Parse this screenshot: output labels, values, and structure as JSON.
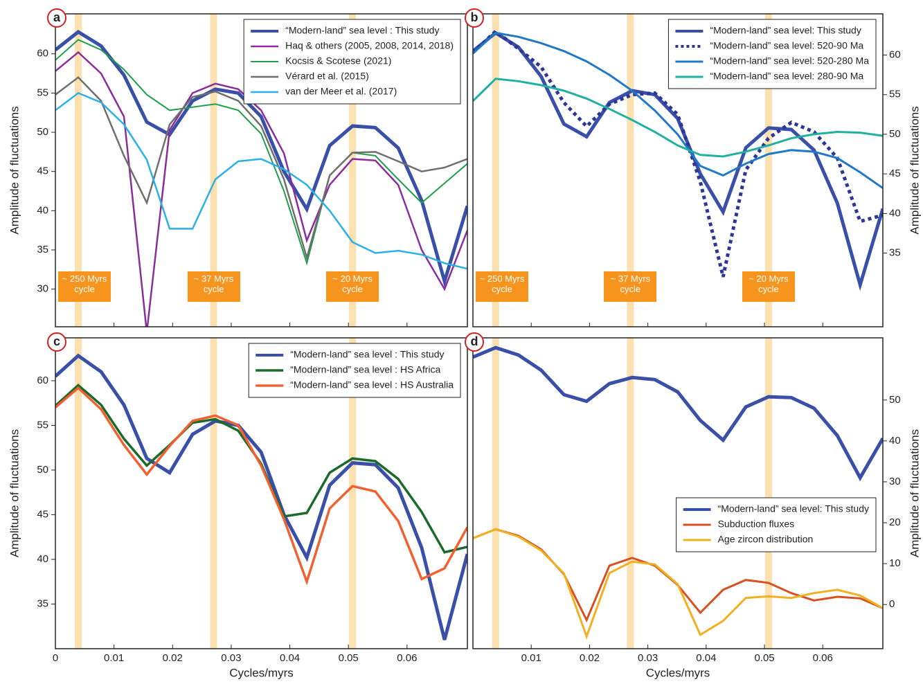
{
  "chart_data": [
    {
      "type": "line",
      "panel_label": "a",
      "ylabel": "Amplitude of fluctuations",
      "yaxis_side": "left",
      "xtick_labels": false,
      "legend": "upper right",
      "xlim": [
        0,
        0.0703
      ],
      "ylim": [
        25.2,
        65.1
      ],
      "xticks": [
        0,
        0.01,
        0.02,
        0.03,
        0.04,
        0.05,
        0.06
      ],
      "yticks": [
        30,
        35,
        40,
        45,
        50,
        55,
        60
      ],
      "highlight_x": [
        0.0039,
        0.027,
        0.0507
      ],
      "annotations": [
        {
          "x": 0.0039,
          "label": "~ 250 Myrs cycle"
        },
        {
          "x": 0.027,
          "label": "~ 37 Myrs cycle"
        },
        {
          "x": 0.0507,
          "label": "~ 20 Myrs cycle"
        }
      ],
      "x": [
        0,
        0.0039,
        0.0078,
        0.0117,
        0.0156,
        0.0195,
        0.0234,
        0.0273,
        0.0312,
        0.0351,
        0.039,
        0.0429,
        0.0468,
        0.0507,
        0.0546,
        0.0585,
        0.0625,
        0.0664,
        0.0703
      ],
      "series": [
        {
          "name": "“Modern-land” sea level : This study",
          "color": "#3a4fa8",
          "linewidth": 5,
          "values": [
            60.5,
            62.8,
            61,
            57.3,
            51.3,
            49.7,
            54,
            55.5,
            55,
            52,
            45,
            40.2,
            48.3,
            50.8,
            50.6,
            48,
            41.3,
            31,
            40.6
          ]
        },
        {
          "name": "Haq & others (2005, 2008, 2014, 2018)",
          "color": "#8a2c9e",
          "linewidth": 2.5,
          "values": [
            57.8,
            60.2,
            57.5,
            52,
            24.5,
            50.3,
            55,
            56.2,
            55.5,
            52.8,
            47.3,
            36.2,
            43.3,
            46.6,
            46.4,
            43.3,
            35,
            30,
            37.5
          ]
        },
        {
          "name": "Kocsis & Scotese (2021)",
          "color": "#1e9e4a",
          "linewidth": 2,
          "values": [
            59.2,
            61.8,
            60.5,
            58,
            54.8,
            52.8,
            53.2,
            53.6,
            52.8,
            49.8,
            42.5,
            33.3,
            44.5,
            47.4,
            47,
            44,
            41,
            43.5,
            46
          ]
        },
        {
          "name": "Vérard et al. (2015)",
          "color": "#6e6e6e",
          "linewidth": 2.5,
          "values": [
            54.8,
            57,
            54,
            47,
            41,
            51,
            54.5,
            55.2,
            54,
            50.8,
            44,
            34,
            44.5,
            47.4,
            47.5,
            46.3,
            45,
            45.5,
            46.6
          ]
        },
        {
          "name": "van der Meer et al. (2017)",
          "color": "#2ab0e8",
          "linewidth": 2.5,
          "values": [
            52.8,
            55,
            53.8,
            51,
            46.5,
            37.7,
            37.7,
            44,
            46.3,
            46.6,
            45.3,
            43.3,
            40,
            36,
            34.6,
            34.9,
            34.4,
            33.3,
            32.6
          ]
        }
      ]
    },
    {
      "type": "line",
      "panel_label": "b",
      "ylabel": "Amplitude of fluctuations",
      "yaxis_side": "right",
      "xtick_labels": false,
      "legend": "upper right",
      "xlim": [
        0,
        0.0703
      ],
      "ylim": [
        25.7,
        65.2
      ],
      "xticks": [
        0,
        0.01,
        0.02,
        0.03,
        0.04,
        0.05,
        0.06
      ],
      "yticks": [
        35,
        40,
        45,
        50,
        55,
        60
      ],
      "highlight_x": [
        0.0039,
        0.027,
        0.0507
      ],
      "annotations": [
        {
          "x": 0.0039,
          "label": "~ 250 Myrs cycle"
        },
        {
          "x": 0.027,
          "label": "~ 37 Myrs cycle"
        },
        {
          "x": 0.0507,
          "label": "~ 20 Myrs cycle"
        }
      ],
      "x": [
        0,
        0.0039,
        0.0078,
        0.0117,
        0.0156,
        0.0195,
        0.0234,
        0.0273,
        0.0312,
        0.0351,
        0.039,
        0.0429,
        0.0468,
        0.0507,
        0.0546,
        0.0585,
        0.0625,
        0.0664,
        0.0703
      ],
      "series": [
        {
          "name": "“Modern-land” sea level: This study",
          "color": "#3a4fa8",
          "linewidth": 5,
          "values": [
            60.5,
            62.8,
            61,
            57.3,
            51.3,
            49.7,
            54,
            55.5,
            55,
            52,
            45,
            40.2,
            48.3,
            50.8,
            50.6,
            48,
            41.3,
            31,
            40.6
          ]
        },
        {
          "name": "“Modern-land” sea level: 520-90 Ma",
          "color": "#2c3598",
          "linewidth": 5,
          "dashed": true,
          "values": [
            60.3,
            63,
            60.8,
            58.5,
            54,
            51,
            53.8,
            55,
            55.2,
            52.5,
            44,
            32,
            45.5,
            49.5,
            51.5,
            50.3,
            47,
            39,
            39.8
          ]
        },
        {
          "name": "“Modern-land” sea level: 520-280 Ma",
          "color": "#1f78c8",
          "linewidth": 3,
          "values": [
            60.2,
            62.8,
            62.3,
            61.5,
            60.5,
            59.2,
            57.5,
            55.5,
            53,
            50,
            46,
            44.8,
            46.3,
            47.5,
            48,
            47.8,
            47,
            45.2,
            43.2
          ]
        },
        {
          "name": "“Modern-land” sea level: 280-90 Ma",
          "color": "#1fb0a0",
          "linewidth": 3,
          "values": [
            54.2,
            57,
            56.7,
            56.2,
            55.5,
            54.5,
            53.2,
            51.8,
            50.3,
            48.6,
            47.4,
            47.2,
            47.8,
            48.6,
            49.5,
            50,
            50.3,
            50.2,
            49.8
          ]
        }
      ]
    },
    {
      "type": "line",
      "panel_label": "c",
      "ylabel": "Amplitude of fluctuations",
      "xlabel": "Cycles/myrs",
      "yaxis_side": "left",
      "xtick_labels": true,
      "legend": "upper right",
      "xlim": [
        0,
        0.0703
      ],
      "ylim": [
        30,
        64.8
      ],
      "xticks": [
        0,
        0.01,
        0.02,
        0.03,
        0.04,
        0.05,
        0.06
      ],
      "yticks": [
        35,
        40,
        45,
        50,
        55,
        60
      ],
      "highlight_x": [
        0.0039,
        0.027,
        0.0507
      ],
      "x": [
        0,
        0.0039,
        0.0078,
        0.0117,
        0.0156,
        0.0195,
        0.0234,
        0.0273,
        0.0312,
        0.0351,
        0.039,
        0.0429,
        0.0468,
        0.0507,
        0.0546,
        0.0585,
        0.0625,
        0.0664,
        0.0703
      ],
      "series": [
        {
          "name": "“Modern-land” sea level : This study",
          "color": "#3a4fa8",
          "linewidth": 5,
          "values": [
            60.5,
            62.8,
            61,
            57.3,
            51.3,
            49.7,
            54,
            55.5,
            55,
            52,
            45,
            40.2,
            48.3,
            50.8,
            50.6,
            48,
            41.3,
            31,
            40.6
          ]
        },
        {
          "name": "“Modern-land” sea level : HS Africa",
          "color": "#1a6a2a",
          "linewidth": 3.5,
          "values": [
            57.2,
            59.5,
            57.3,
            53.5,
            50.5,
            52.8,
            55.3,
            55.7,
            54.4,
            50.7,
            44.8,
            45.2,
            49.7,
            51.3,
            51,
            49,
            45.3,
            40.8,
            41.4
          ]
        },
        {
          "name": "“Modern-land” sea level : HS Australia",
          "color": "#f06030",
          "linewidth": 3.5,
          "values": [
            57,
            59.2,
            56.8,
            52.8,
            49.5,
            52.7,
            55.5,
            56.1,
            55,
            50.5,
            44.5,
            37.5,
            45.7,
            48.2,
            47.6,
            44.3,
            37.8,
            39,
            43.6
          ]
        }
      ]
    },
    {
      "type": "line",
      "panel_label": "d",
      "ylabel": "Amplitude of fluctuations",
      "xlabel": "Cycles/myrs",
      "yaxis_side": "right",
      "xtick_labels": true,
      "legend": "lower right",
      "xlim": [
        0,
        0.0703
      ],
      "ylim": [
        -10.8,
        65.2
      ],
      "xticks": [
        0.01,
        0.02,
        0.03,
        0.04,
        0.05,
        0.06
      ],
      "yticks": [
        0,
        10,
        20,
        30,
        40,
        50
      ],
      "highlight_x": [
        0.0039,
        0.027,
        0.0507
      ],
      "x": [
        0,
        0.0039,
        0.0078,
        0.0117,
        0.0156,
        0.0195,
        0.0234,
        0.0273,
        0.0312,
        0.0351,
        0.039,
        0.0429,
        0.0468,
        0.0507,
        0.0546,
        0.0585,
        0.0625,
        0.0664,
        0.0703
      ],
      "series": [
        {
          "name": "“Modern-land” sea level: This study",
          "color": "#3a4fa8",
          "linewidth": 5,
          "values": [
            60.5,
            62.8,
            61,
            57.3,
            51.3,
            49.7,
            54,
            55.5,
            55,
            52,
            45,
            40.2,
            48.3,
            50.8,
            50.6,
            48,
            41.3,
            31,
            40.6
          ]
        },
        {
          "name": "Subduction fluxes",
          "color": "#d85020",
          "linewidth": 3,
          "values": [
            16.2,
            18.4,
            16.8,
            13.5,
            7.4,
            -3.8,
            9.5,
            11.4,
            9.5,
            4.8,
            -2,
            3.6,
            6,
            5.3,
            2.8,
            1,
            1.9,
            1.5,
            -0.9
          ]
        },
        {
          "name": "Age zircon distribution",
          "color": "#f0b020",
          "linewidth": 3,
          "values": [
            16.2,
            18.4,
            16.6,
            13.2,
            7.6,
            -7.8,
            7.7,
            10.5,
            9.8,
            5,
            -7.4,
            -4,
            1.6,
            2,
            1.6,
            2.8,
            3.6,
            2.2,
            -0.9
          ]
        }
      ]
    }
  ]
}
